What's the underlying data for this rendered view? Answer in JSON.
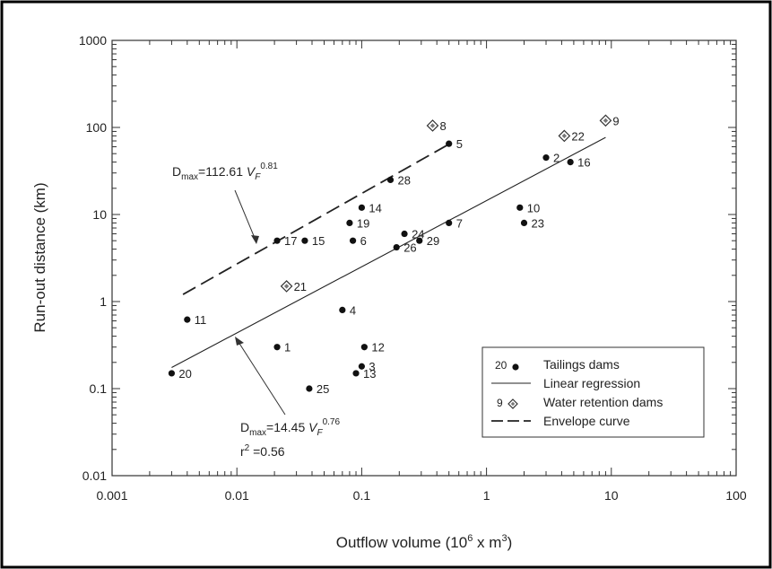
{
  "chart_data": {
    "type": "scatter",
    "xlabel": "Outflow volume (10",
    "xlabel_sup": "6",
    "xlabel_tail": " x m",
    "xlabel_sup2": "3",
    "xlabel_end": ")",
    "ylabel": "Run-out distance (km)",
    "x_scale": "log",
    "y_scale": "log",
    "xlim": [
      0.001,
      100
    ],
    "ylim": [
      0.01,
      1000
    ],
    "x_ticks": [
      {
        "v": 0.001,
        "label": "0.001"
      },
      {
        "v": 0.01,
        "label": "0.01"
      },
      {
        "v": 0.1,
        "label": "0.1"
      },
      {
        "v": 1,
        "label": "1"
      },
      {
        "v": 10,
        "label": "10"
      },
      {
        "v": 100,
        "label": "100"
      }
    ],
    "y_ticks": [
      {
        "v": 0.01,
        "label": "0.01"
      },
      {
        "v": 0.1,
        "label": "0.1"
      },
      {
        "v": 1,
        "label": "1"
      },
      {
        "v": 10,
        "label": "10"
      },
      {
        "v": 100,
        "label": "100"
      },
      {
        "v": 1000,
        "label": "1000"
      }
    ],
    "grid": false,
    "series": [
      {
        "name": "Tailings dams",
        "marker": "dot",
        "points": [
          {
            "x": 0.021,
            "y": 0.3,
            "label": "1"
          },
          {
            "x": 3.0,
            "y": 45,
            "label": "2"
          },
          {
            "x": 0.1,
            "y": 0.18,
            "label": "3"
          },
          {
            "x": 0.07,
            "y": 0.8,
            "label": "4"
          },
          {
            "x": 0.5,
            "y": 65,
            "label": "5"
          },
          {
            "x": 0.085,
            "y": 5.0,
            "label": "6"
          },
          {
            "x": 0.5,
            "y": 8.0,
            "label": "7"
          },
          {
            "x": 1.85,
            "y": 12,
            "label": "10"
          },
          {
            "x": 0.004,
            "y": 0.62,
            "label": "11"
          },
          {
            "x": 0.105,
            "y": 0.3,
            "label": "12"
          },
          {
            "x": 0.09,
            "y": 0.15,
            "label": "13"
          },
          {
            "x": 0.1,
            "y": 12,
            "label": "14"
          },
          {
            "x": 0.035,
            "y": 5.0,
            "label": "15"
          },
          {
            "x": 4.7,
            "y": 40,
            "label": "16"
          },
          {
            "x": 0.021,
            "y": 5.0,
            "label": "17"
          },
          {
            "x": 0.08,
            "y": 8.0,
            "label": "19"
          },
          {
            "x": 0.003,
            "y": 0.15,
            "label": "20"
          },
          {
            "x": 2.0,
            "y": 8.0,
            "label": "23"
          },
          {
            "x": 0.22,
            "y": 6.0,
            "label": "24"
          },
          {
            "x": 0.038,
            "y": 0.1,
            "label": "25"
          },
          {
            "x": 0.19,
            "y": 4.2,
            "label": "26"
          },
          {
            "x": 0.17,
            "y": 25,
            "label": "28"
          },
          {
            "x": 0.29,
            "y": 5.0,
            "label": "29"
          }
        ]
      },
      {
        "name": "Water retention dams",
        "marker": "diamond",
        "points": [
          {
            "x": 0.37,
            "y": 105,
            "label": "8"
          },
          {
            "x": 9.0,
            "y": 120,
            "label": "9"
          },
          {
            "x": 0.025,
            "y": 1.5,
            "label": "21"
          },
          {
            "x": 4.2,
            "y": 80,
            "label": "22"
          }
        ]
      },
      {
        "name": "Linear regression",
        "style": "solid",
        "equation_coef": 14.45,
        "equation_exp": 0.76,
        "x_range": [
          0.003,
          9.0
        ]
      },
      {
        "name": "Envelope curve",
        "style": "dashed",
        "equation_coef": 112.61,
        "equation_exp": 0.81,
        "x_range": [
          0.0037,
          0.52
        ]
      }
    ],
    "annotations": {
      "envelope_eq": {
        "prefix": "D",
        "sub": "max",
        "mid": "=112.61 ",
        "var": "V",
        "var_sub": "F",
        "exp": "0.81"
      },
      "regression_eq": {
        "prefix": "D",
        "sub": "max",
        "mid": "=14.45 ",
        "var": "V",
        "var_sub": "F",
        "exp": "0.76"
      },
      "r2": {
        "prefix": "r",
        "sup": "2",
        "mid": " =0.56"
      }
    },
    "legend": {
      "placement": "bottom-right",
      "entries": [
        {
          "symbol_label": "20",
          "marker": "dot",
          "text": "Tailings dams"
        },
        {
          "symbol_label": "",
          "marker": "solid-line",
          "text": "Linear regression"
        },
        {
          "symbol_label": "9",
          "marker": "diamond",
          "text": "Water retention dams"
        },
        {
          "symbol_label": "",
          "marker": "dashed-line",
          "text": "Envelope curve"
        }
      ]
    }
  }
}
